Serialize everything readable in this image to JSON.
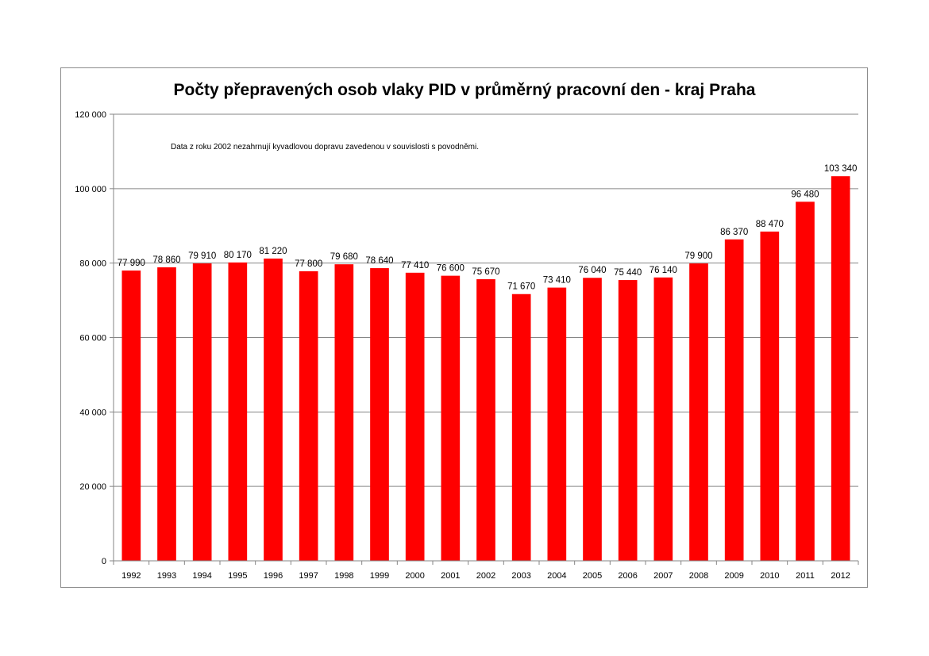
{
  "chart_data": {
    "type": "bar",
    "title": "Počty přepravených osob vlaky PID v průměrný pracovní den - kraj Praha",
    "annotation": "Data z roku 2002 nezahrnují kyvadlovou dopravu zavedenou v souvislosti s povodněmi.",
    "categories": [
      "1992",
      "1993",
      "1994",
      "1995",
      "1996",
      "1997",
      "1998",
      "1999",
      "2000",
      "2001",
      "2002",
      "2003",
      "2004",
      "2005",
      "2006",
      "2007",
      "2008",
      "2009",
      "2010",
      "2011",
      "2012"
    ],
    "values": [
      77990,
      78860,
      79910,
      80170,
      81220,
      77800,
      79680,
      78640,
      77410,
      76600,
      75670,
      71670,
      73410,
      76040,
      75440,
      76140,
      79900,
      86370,
      88470,
      96480,
      103340
    ],
    "data_labels": [
      "77 990",
      "78 860",
      "79 910",
      "80 170",
      "81 220",
      "77 800",
      "79 680",
      "78 640",
      "77 410",
      "76 600",
      "75 670",
      "71 670",
      "73 410",
      "76 040",
      "75 440",
      "76 140",
      "79 900",
      "86 370",
      "88 470",
      "96 480",
      "103 340"
    ],
    "ylim": [
      0,
      120000
    ],
    "yticks": [
      0,
      20000,
      40000,
      60000,
      80000,
      100000,
      120000
    ],
    "ytick_labels": [
      "0",
      "20 000",
      "40 000",
      "60 000",
      "80 000",
      "100 000",
      "120 000"
    ],
    "xlabel": "",
    "ylabel": "",
    "grid": true,
    "legend": "none",
    "bar_color": "#ff0000",
    "grid_color": "#868686"
  }
}
